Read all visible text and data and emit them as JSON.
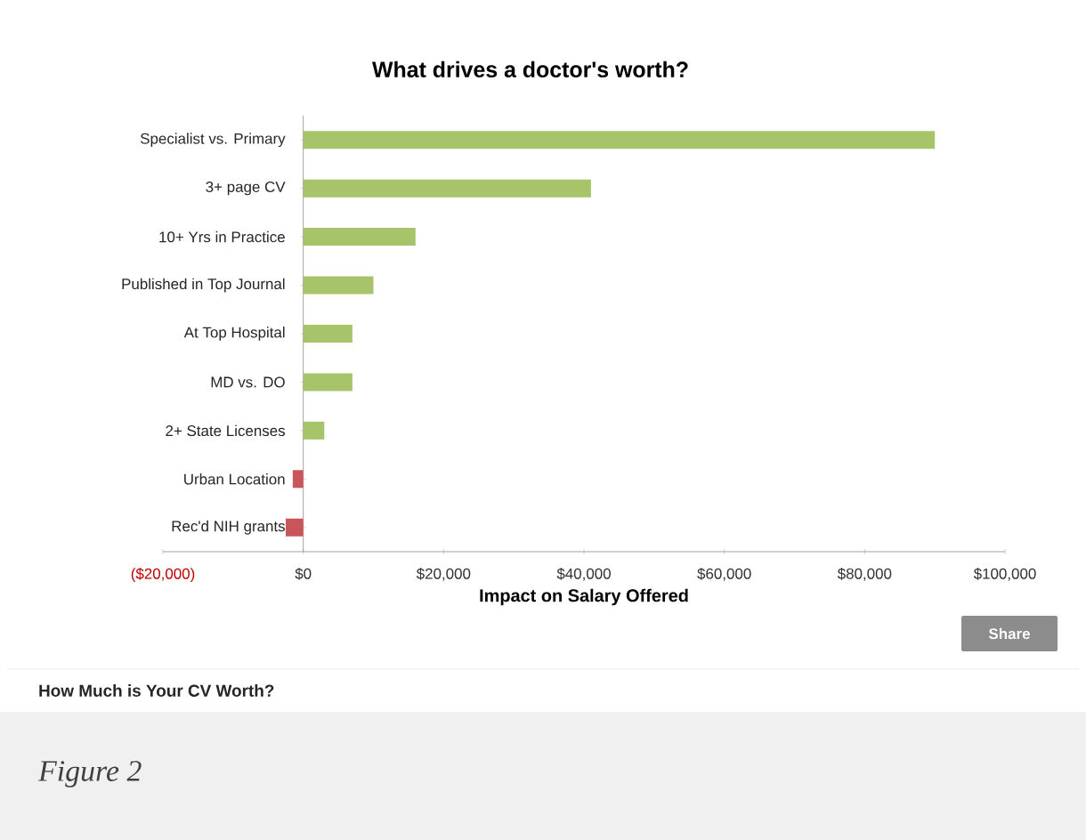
{
  "chart_data": {
    "type": "bar",
    "orientation": "horizontal",
    "title": "What drives a doctor's worth?",
    "xlabel": "Impact on Salary Offered",
    "categories": [
      "Specialist vs. Primary",
      "3+ page CV",
      "10+ Yrs in Practice",
      "Published in Top Journal",
      "At Top Hospital",
      "MD vs. DO",
      "2+ State Licenses",
      "Urban Location",
      "Rec'd NIH grants"
    ],
    "values": [
      90000,
      41000,
      16000,
      10000,
      7000,
      7000,
      3000,
      -1500,
      -2500
    ],
    "colors": [
      "#a8c46a",
      "#a8c46a",
      "#a8c46a",
      "#a8c46a",
      "#a8c46a",
      "#a8c46a",
      "#a8c46a",
      "#c9555a",
      "#c9555a"
    ],
    "xlim": [
      -20000,
      100000
    ],
    "xticks": [
      {
        "value": -20000,
        "label": "($20,000)"
      },
      {
        "value": 0,
        "label": "$0"
      },
      {
        "value": 20000,
        "label": "$20,000"
      },
      {
        "value": 40000,
        "label": "$40,000"
      },
      {
        "value": 60000,
        "label": "$60,000"
      },
      {
        "value": 80000,
        "label": "$80,000"
      },
      {
        "value": 100000,
        "label": "$100,000"
      }
    ],
    "grid": false,
    "annotations": [
      "Share",
      "How Much is Your CV Worth?",
      "Figure 2"
    ]
  }
}
